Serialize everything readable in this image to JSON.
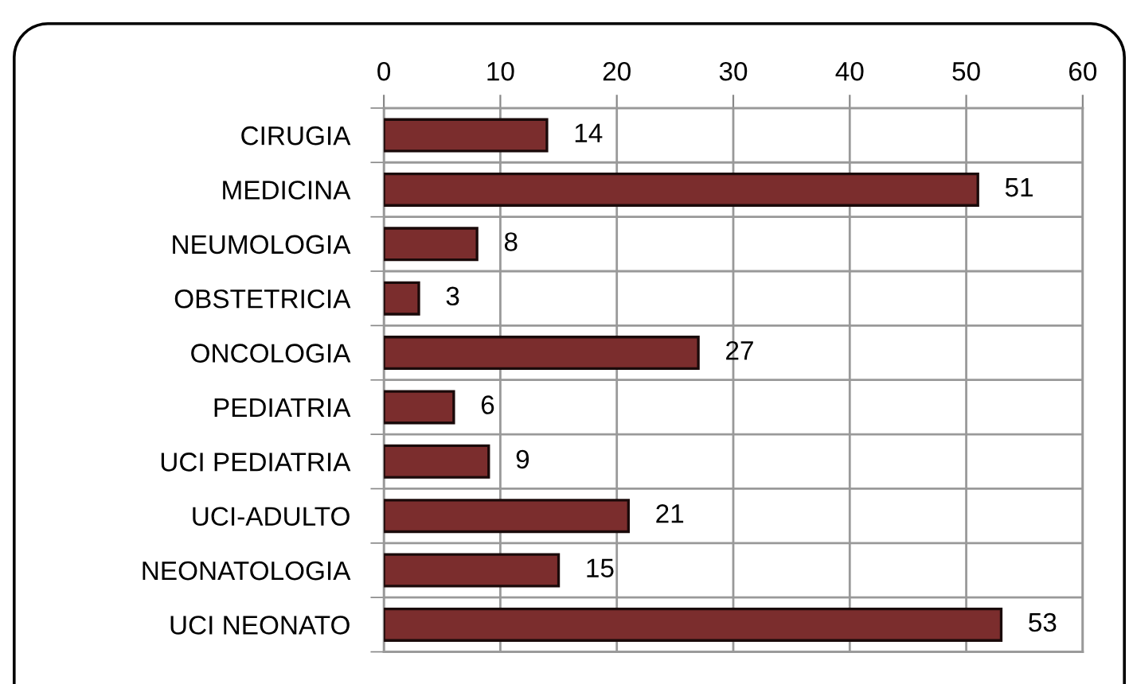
{
  "chart_data": {
    "type": "bar",
    "orientation": "horizontal",
    "categories": [
      "CIRUGIA",
      "MEDICINA",
      "NEUMOLOGIA",
      "OBSTETRICIA",
      "ONCOLOGIA",
      "PEDIATRIA",
      "UCI PEDIATRIA",
      "UCI-ADULTO",
      "NEONATOLOGIA",
      "UCI NEONATO"
    ],
    "values": [
      14,
      51,
      8,
      3,
      27,
      6,
      9,
      21,
      15,
      53
    ],
    "color": "#7b2d2d",
    "xlim": [
      0,
      60
    ],
    "xticks": [
      0,
      10,
      20,
      30,
      40,
      50,
      60
    ],
    "grid": true,
    "data_labels": true
  }
}
